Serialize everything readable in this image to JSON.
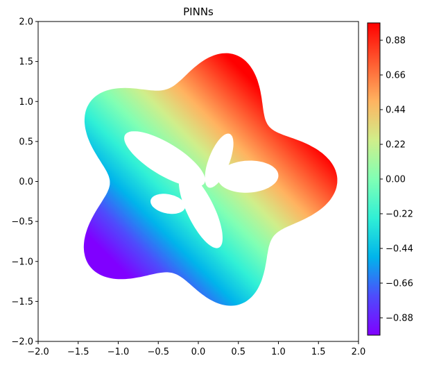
{
  "chart_data": {
    "type": "heatmap",
    "title": "PINNs",
    "xlabel": "",
    "ylabel": "",
    "xlim": [
      -2.0,
      2.0
    ],
    "ylim": [
      -2.0,
      2.0
    ],
    "x_ticks": [
      "−2.0",
      "−1.5",
      "−1.0",
      "−0.5",
      "0.0",
      "0.5",
      "1.0",
      "1.5",
      "2.0"
    ],
    "y_ticks": [
      "−2.0",
      "−1.5",
      "−1.0",
      "−0.5",
      "0.0",
      "0.5",
      "1.0",
      "1.5",
      "2.0"
    ],
    "colormap": "rainbow",
    "colorbar": {
      "range": [
        -0.99,
        0.99
      ],
      "ticks": [
        "−0.88",
        "−0.66",
        "−0.44",
        "−0.22",
        "0.00",
        "0.22",
        "0.44",
        "0.66",
        "0.88"
      ]
    },
    "grid": false,
    "colors": {
      "low": "#8000ff",
      "mid_low": "#00b4eb",
      "mid": "#80ffb4",
      "mid_high": "#ffb360",
      "high": "#ff0000"
    }
  }
}
